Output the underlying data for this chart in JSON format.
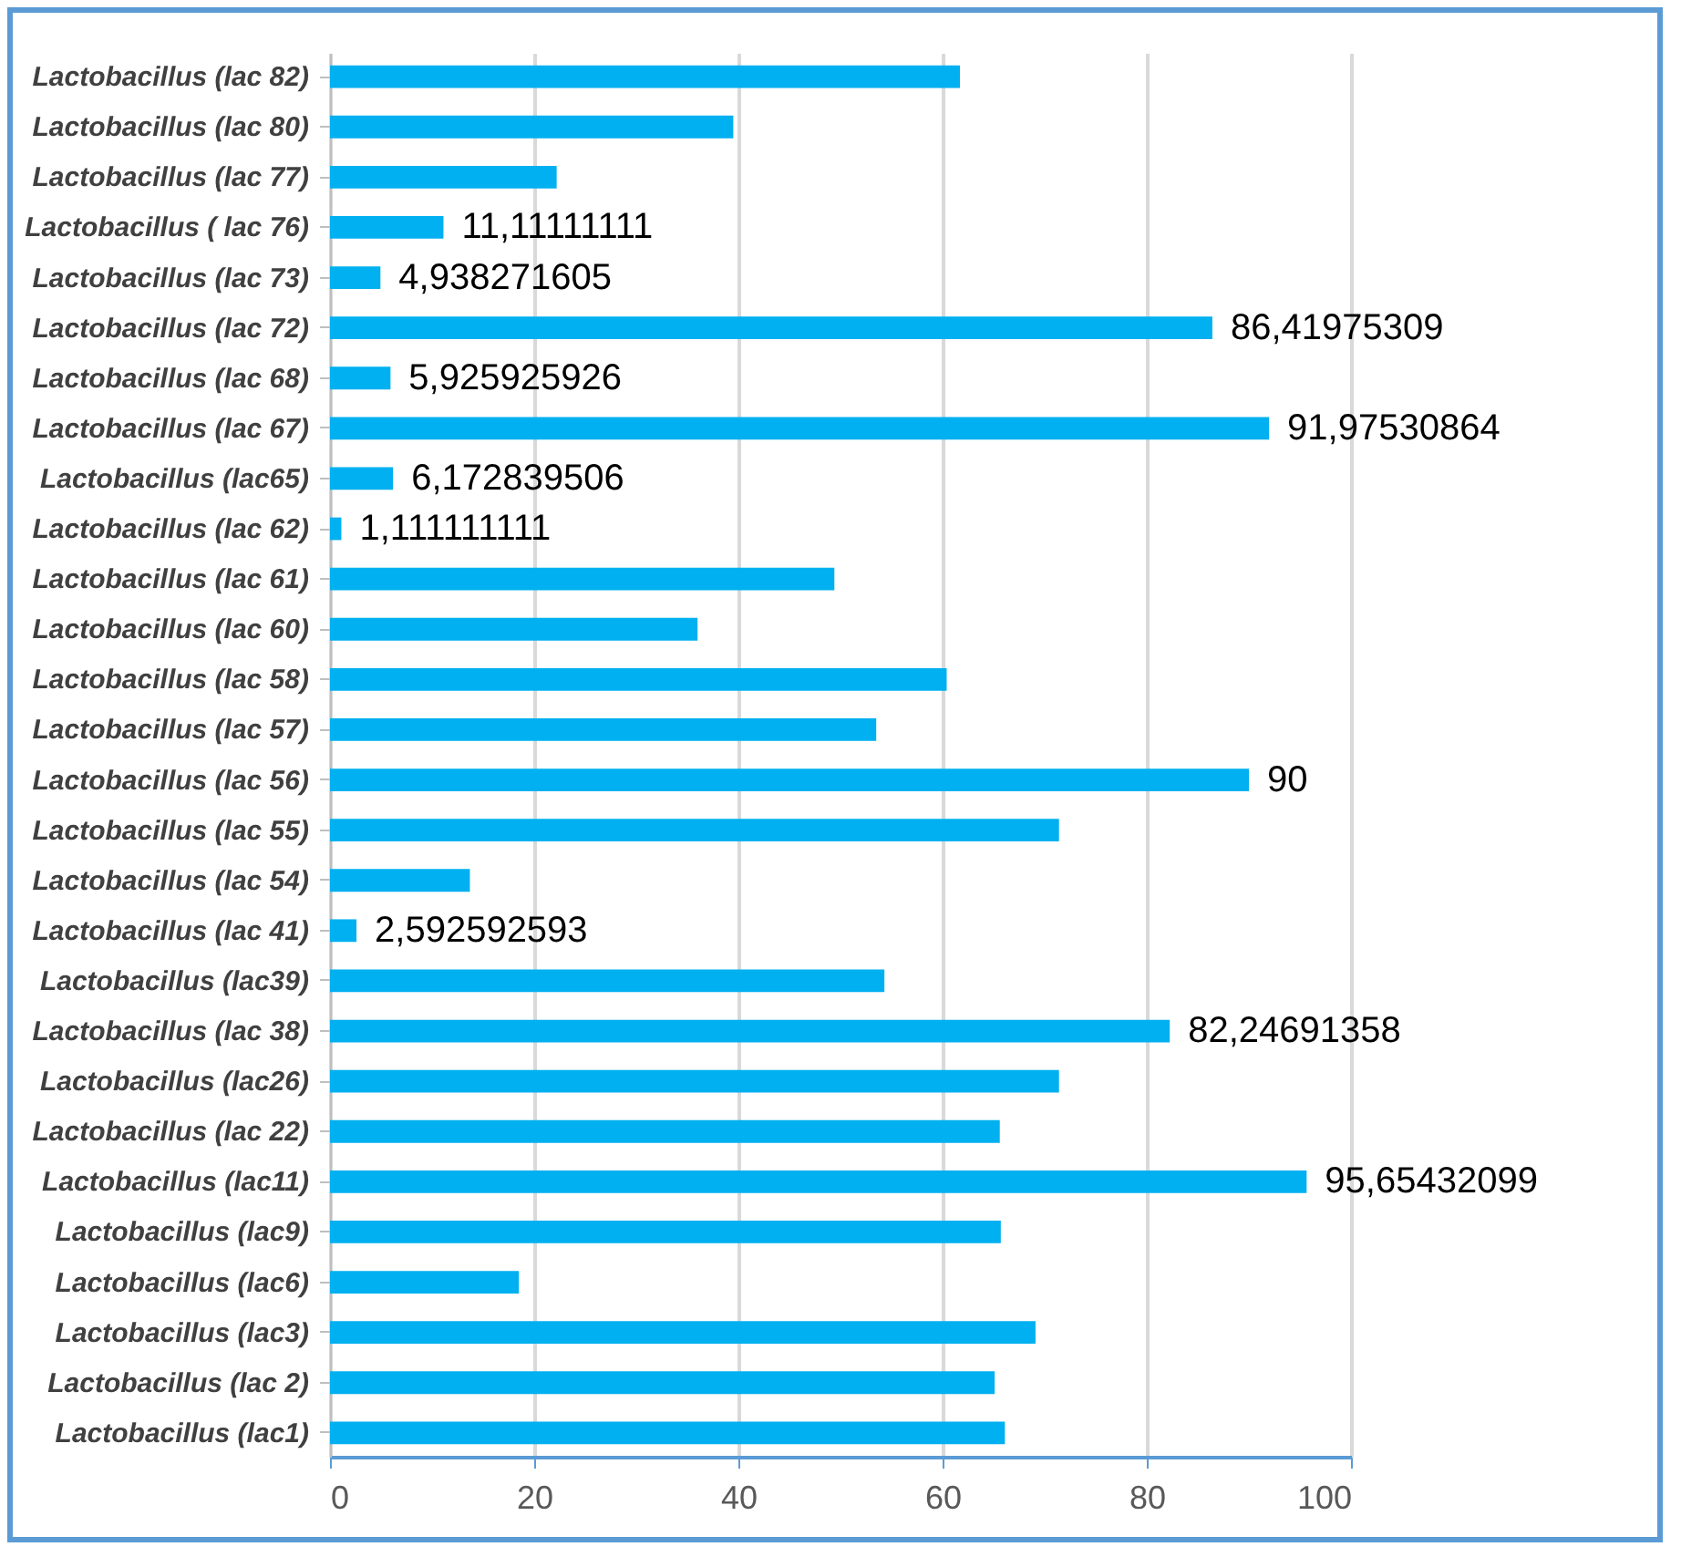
{
  "chart_data": {
    "type": "bar",
    "orientation": "horizontal",
    "categories": [
      "Lactobacillus (lac 82)",
      "Lactobacillus (lac 80)",
      "Lactobacillus (lac 77)",
      "Lactobacillus ( lac 76)",
      "Lactobacillus (lac 73)",
      "Lactobacillus (lac 72)",
      "Lactobacillus (lac 68)",
      "Lactobacillus (lac 67)",
      "Lactobacillus (lac65)",
      "Lactobacillus (lac 62)",
      "Lactobacillus (lac 61)",
      "Lactobacillus (lac 60)",
      "Lactobacillus (lac 58)",
      "Lactobacillus (lac 57)",
      "Lactobacillus (lac 56)",
      "Lactobacillus (lac 55)",
      "Lactobacillus (lac 54)",
      "Lactobacillus (lac 41)",
      "Lactobacillus (lac39)",
      "Lactobacillus (lac 38)",
      "Lactobacillus (lac26)",
      "Lactobacillus (lac 22)",
      "Lactobacillus (lac11)",
      "Lactobacillus (lac9)",
      "Lactobacillus (lac6)",
      "Lactobacillus (lac3)",
      "Lactobacillus (lac 2)",
      "Lactobacillus (lac1)"
    ],
    "values": [
      61.7,
      39.5,
      22.2,
      11.11111111,
      4.938271605,
      86.41975309,
      5.925925926,
      91.97530864,
      6.172839506,
      1.111111111,
      49.4,
      36.0,
      60.4,
      53.5,
      90,
      71.4,
      13.7,
      2.592592593,
      54.3,
      82.24691358,
      71.4,
      65.6,
      95.65432099,
      65.7,
      18.5,
      69.1,
      65.1,
      66.1
    ],
    "value_labels": [
      null,
      null,
      null,
      "11,11111111",
      "4,938271605",
      "86,41975309",
      "5,925925926",
      "91,97530864",
      "6,172839506",
      "1,111111111",
      null,
      null,
      null,
      null,
      "90",
      null,
      null,
      "2,592592593",
      null,
      "82,24691358",
      null,
      null,
      "95,65432099",
      null,
      null,
      null,
      null,
      null
    ],
    "color": "#00b0f0",
    "xlim": [
      0,
      100
    ],
    "xticks": [
      0,
      20,
      40,
      60,
      80,
      100
    ],
    "grid": "x"
  }
}
